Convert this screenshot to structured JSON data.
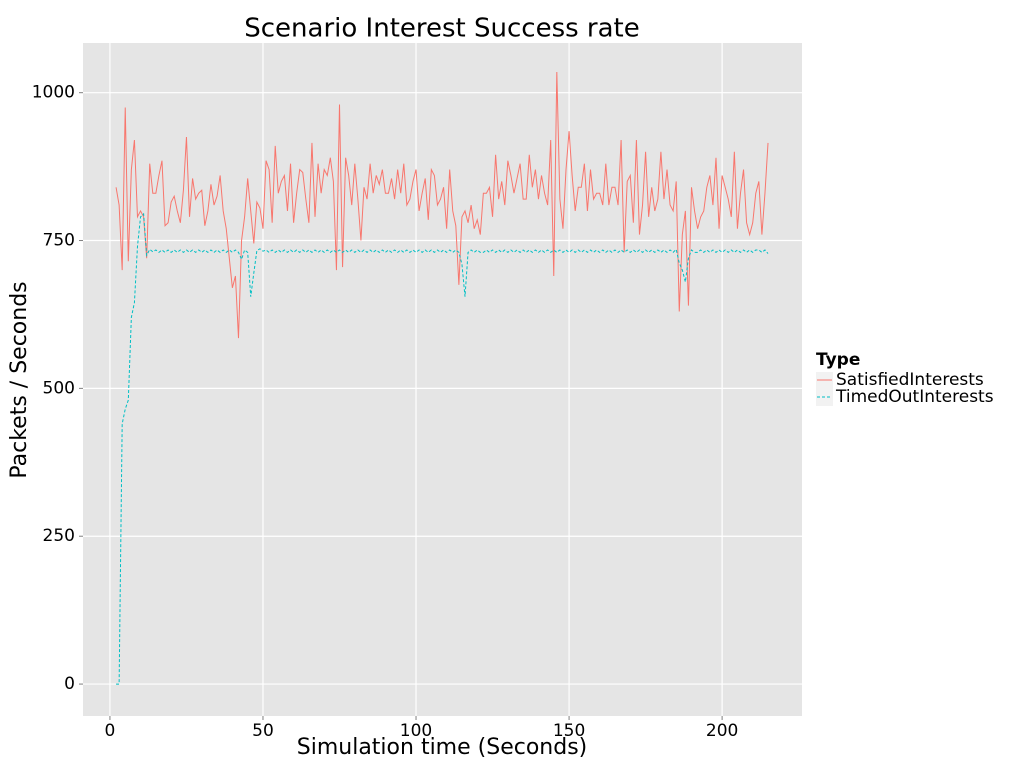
{
  "chart_data": {
    "type": "line",
    "title": "Scenario Interest Success rate",
    "x_label": "Simulation time (Seconds)",
    "y_label": "Packets / Seconds",
    "legend_title": "Type",
    "legend_position": "right",
    "grid": true,
    "xlim": [
      -8.8,
      226.1
    ],
    "ylim": [
      -54,
      1084
    ],
    "xticks": [
      0,
      50,
      100,
      150,
      200
    ],
    "yticks": [
      0,
      250,
      500,
      750,
      1000
    ],
    "x": [
      2,
      3,
      4,
      5,
      6,
      7,
      8,
      9,
      10,
      11,
      12,
      13,
      14,
      15,
      16,
      17,
      18,
      19,
      20,
      21,
      22,
      23,
      24,
      25,
      26,
      27,
      28,
      29,
      30,
      31,
      32,
      33,
      34,
      35,
      36,
      37,
      38,
      39,
      40,
      41,
      42,
      43,
      44,
      45,
      46,
      47,
      48,
      49,
      50,
      51,
      52,
      53,
      54,
      55,
      56,
      57,
      58,
      59,
      60,
      61,
      62,
      63,
      64,
      65,
      66,
      67,
      68,
      69,
      70,
      71,
      72,
      73,
      74,
      75,
      76,
      77,
      78,
      79,
      80,
      81,
      82,
      83,
      84,
      85,
      86,
      87,
      88,
      89,
      90,
      91,
      92,
      93,
      94,
      95,
      96,
      97,
      98,
      99,
      100,
      101,
      102,
      103,
      104,
      105,
      106,
      107,
      108,
      109,
      110,
      111,
      112,
      113,
      114,
      115,
      116,
      117,
      118,
      119,
      120,
      121,
      122,
      123,
      124,
      125,
      126,
      127,
      128,
      129,
      130,
      131,
      132,
      133,
      134,
      135,
      136,
      137,
      138,
      139,
      140,
      141,
      142,
      143,
      144,
      145,
      146,
      147,
      148,
      149,
      150,
      151,
      152,
      153,
      154,
      155,
      156,
      157,
      158,
      159,
      160,
      161,
      162,
      163,
      164,
      165,
      166,
      167,
      168,
      169,
      170,
      171,
      172,
      173,
      174,
      175,
      176,
      177,
      178,
      179,
      180,
      181,
      182,
      183,
      184,
      185,
      186,
      187,
      188,
      189,
      190,
      191,
      192,
      193,
      194,
      195,
      196,
      197,
      198,
      199,
      200,
      201,
      202,
      203,
      204,
      205,
      206,
      207,
      208,
      209,
      210,
      211,
      212,
      213,
      214,
      215
    ],
    "series": [
      {
        "name": "SatisfiedInterests",
        "color": "#F8766D",
        "dash": false,
        "values": [
          840,
          810,
          700,
          975,
          715,
          870,
          920,
          790,
          800,
          790,
          720,
          880,
          830,
          830,
          860,
          885,
          775,
          780,
          815,
          825,
          800,
          780,
          835,
          925,
          790,
          855,
          820,
          830,
          835,
          775,
          800,
          845,
          810,
          825,
          860,
          800,
          770,
          720,
          670,
          690,
          585,
          750,
          790,
          855,
          800,
          745,
          815,
          805,
          770,
          885,
          870,
          780,
          910,
          830,
          850,
          860,
          800,
          880,
          780,
          830,
          870,
          865,
          820,
          780,
          915,
          790,
          880,
          830,
          870,
          860,
          890,
          850,
          700,
          980,
          705,
          890,
          860,
          810,
          880,
          820,
          750,
          840,
          820,
          880,
          830,
          860,
          845,
          870,
          830,
          830,
          855,
          820,
          870,
          830,
          880,
          810,
          820,
          850,
          870,
          800,
          830,
          855,
          785,
          870,
          860,
          810,
          820,
          840,
          770,
          870,
          800,
          775,
          675,
          790,
          800,
          780,
          810,
          770,
          785,
          760,
          830,
          830,
          840,
          790,
          895,
          820,
          850,
          810,
          885,
          860,
          830,
          855,
          880,
          820,
          820,
          895,
          840,
          870,
          820,
          860,
          830,
          810,
          920,
          690,
          1035,
          820,
          770,
          870,
          935,
          860,
          800,
          840,
          840,
          880,
          800,
          870,
          820,
          830,
          830,
          810,
          880,
          810,
          840,
          840,
          810,
          920,
          730,
          850,
          860,
          780,
          920,
          760,
          810,
          900,
          790,
          840,
          800,
          820,
          900,
          820,
          870,
          810,
          800,
          850,
          630,
          760,
          800,
          640,
          840,
          800,
          770,
          790,
          800,
          840,
          860,
          810,
          890,
          770,
          860,
          840,
          820,
          790,
          900,
          770,
          830,
          870,
          780,
          760,
          780,
          830,
          850,
          760,
          830,
          915
        ]
      },
      {
        "name": "TimedOutInterests",
        "color": "#00BFC4",
        "dash": true,
        "values": [
          0,
          0,
          440,
          465,
          480,
          620,
          645,
          740,
          790,
          795,
          725,
          735,
          731,
          734,
          730,
          734,
          730,
          734,
          730,
          734,
          730,
          734,
          730,
          734,
          730,
          734,
          730,
          734,
          730,
          734,
          730,
          734,
          730,
          734,
          730,
          734,
          730,
          734,
          730,
          734,
          730,
          718,
          734,
          730,
          655,
          695,
          733,
          736,
          732,
          734,
          730,
          734,
          730,
          734,
          730,
          734,
          730,
          734,
          730,
          734,
          730,
          734,
          730,
          734,
          730,
          734,
          730,
          734,
          730,
          734,
          730,
          734,
          730,
          734,
          730,
          734,
          730,
          734,
          730,
          734,
          730,
          734,
          730,
          734,
          730,
          734,
          730,
          734,
          730,
          734,
          730,
          734,
          730,
          734,
          730,
          734,
          730,
          734,
          730,
          734,
          730,
          734,
          730,
          734,
          730,
          734,
          730,
          734,
          730,
          734,
          730,
          734,
          730,
          710,
          655,
          730,
          734,
          730,
          734,
          730,
          730,
          734,
          730,
          734,
          730,
          734,
          730,
          734,
          730,
          734,
          730,
          734,
          730,
          734,
          730,
          734,
          730,
          734,
          730,
          734,
          730,
          734,
          730,
          734,
          730,
          734,
          730,
          734,
          730,
          734,
          730,
          734,
          730,
          734,
          730,
          734,
          730,
          734,
          730,
          734,
          730,
          734,
          730,
          734,
          730,
          734,
          730,
          734,
          730,
          734,
          730,
          734,
          730,
          734,
          730,
          734,
          730,
          734,
          730,
          734,
          730,
          734,
          730,
          735,
          712,
          700,
          680,
          720,
          734,
          730,
          730,
          734,
          730,
          734,
          730,
          734,
          730,
          734,
          730,
          734,
          730,
          734,
          730,
          734,
          730,
          734,
          730,
          734,
          730,
          734,
          734,
          730,
          734,
          728
        ]
      }
    ]
  }
}
